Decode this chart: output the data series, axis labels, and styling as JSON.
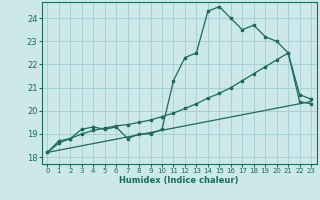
{
  "xlabel": "Humidex (Indice chaleur)",
  "ylabel": "",
  "bg_color": "#cce8ea",
  "grid_color": "#aad0d3",
  "line_color": "#1a6b5a",
  "xlim": [
    -0.5,
    23.5
  ],
  "ylim": [
    17.7,
    24.7
  ],
  "xticks": [
    0,
    1,
    2,
    3,
    4,
    5,
    6,
    7,
    8,
    9,
    10,
    11,
    12,
    13,
    14,
    15,
    16,
    17,
    18,
    19,
    20,
    21,
    22,
    23
  ],
  "yticks": [
    18,
    19,
    20,
    21,
    22,
    23,
    24
  ],
  "line1_x": [
    0,
    1,
    2,
    3,
    4,
    5,
    6,
    7,
    8,
    9,
    10,
    11,
    12,
    13,
    14,
    15,
    16,
    17,
    18,
    19,
    20,
    21,
    22,
    23
  ],
  "line1_y": [
    18.2,
    18.7,
    18.8,
    19.2,
    19.3,
    19.2,
    19.3,
    18.8,
    19.0,
    19.0,
    19.2,
    21.3,
    22.3,
    22.5,
    24.3,
    24.5,
    24.0,
    23.5,
    23.7,
    23.2,
    23.0,
    22.5,
    20.7,
    20.5
  ],
  "line2_x": [
    0,
    1,
    2,
    3,
    4,
    5,
    6,
    7,
    8,
    9,
    10,
    11,
    12,
    13,
    14,
    15,
    16,
    17,
    18,
    19,
    20,
    21,
    22,
    23
  ],
  "line2_y": [
    18.2,
    18.6,
    18.8,
    19.0,
    19.15,
    19.25,
    19.35,
    19.4,
    19.5,
    19.6,
    19.75,
    19.9,
    20.1,
    20.3,
    20.55,
    20.75,
    21.0,
    21.3,
    21.6,
    21.9,
    22.2,
    22.5,
    20.4,
    20.3
  ],
  "line3_x": [
    0,
    23
  ],
  "line3_y": [
    18.2,
    20.4
  ]
}
